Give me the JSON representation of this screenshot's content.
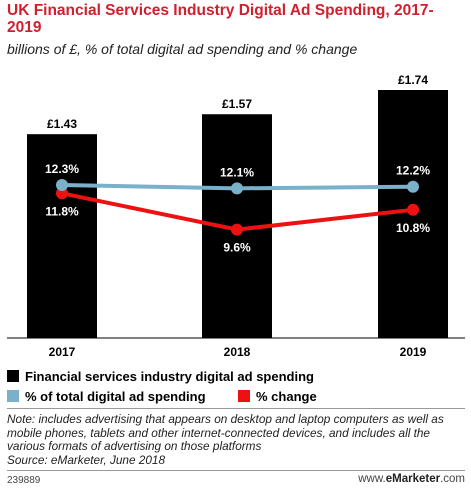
{
  "title": "UK Financial Services Industry Digital Ad Spending, 2017-2019",
  "subtitle": "billions of £, % of total digital ad spending and % change",
  "note": "Note: includes advertising that appears on desktop and laptop computers as well as mobile phones, tablets and other internet-connected devices, and includes all the various formats of advertising on those platforms",
  "source": "Source: eMarketer, June 2018",
  "chart_id": "239889",
  "brand": {
    "prefix": "www.",
    "name": "eMarketer",
    "suffix": ".com"
  },
  "colors": {
    "title": "#d0202e",
    "bars": "#000000",
    "share_line": "#7ab0c9",
    "change_line": "#ee1111"
  },
  "chart_data": {
    "type": "bar",
    "categories": [
      "2017",
      "2018",
      "2019"
    ],
    "series": [
      {
        "name": "Financial services industry digital ad spending",
        "type": "bar",
        "values": [
          1.43,
          1.57,
          1.74
        ],
        "labels": [
          "£1.43",
          "£1.57",
          "£1.74"
        ],
        "color": "#000000"
      },
      {
        "name": "% of total digital ad spending",
        "type": "line",
        "values": [
          12.3,
          12.1,
          12.2
        ],
        "labels": [
          "12.3%",
          "12.1%",
          "12.2%"
        ],
        "color": "#7ab0c9"
      },
      {
        "name": "% change",
        "type": "line",
        "values": [
          11.8,
          9.6,
          10.8
        ],
        "labels": [
          "11.8%",
          "9.6%",
          "10.8%"
        ],
        "color": "#ee1111"
      }
    ],
    "ylim": [
      0,
      1.74
    ],
    "grid": false,
    "legend": "bottom-left"
  }
}
